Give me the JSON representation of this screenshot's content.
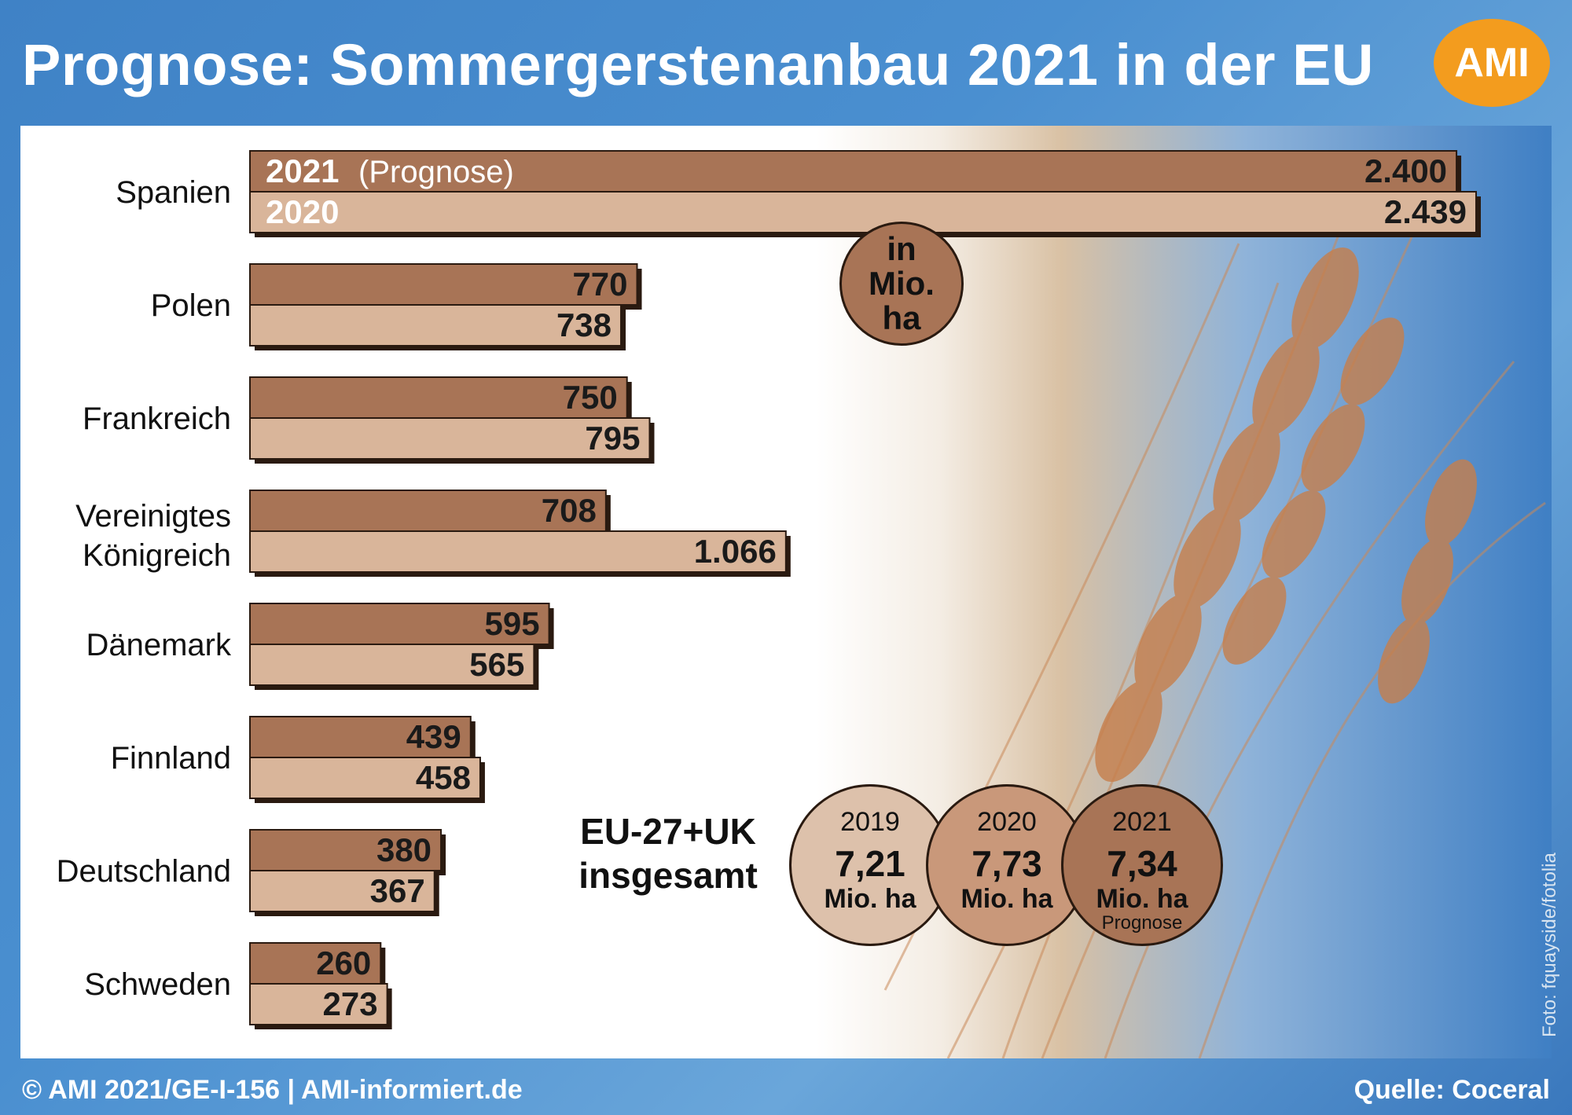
{
  "title": "Prognose: Sommergerstenanbau 2021 in der EU",
  "logo": "AMI",
  "footer": {
    "left": "© AMI 2021/GE-I-156 | AMI-informiert.de",
    "right": "Quelle: Coceral"
  },
  "photo_credit": "Foto: fquayside/fotolia",
  "unit_badge": {
    "line1": "in",
    "line2": "Mio.",
    "line3": "ha"
  },
  "legend": {
    "year_2021": "2021",
    "year_2021_note": "(Prognose)",
    "year_2020": "2020"
  },
  "totals": {
    "label_line1": "EU-27+UK",
    "label_line2": "insgesamt",
    "items": [
      {
        "year": "2019",
        "value": "7,21",
        "unit": "Mio. ha",
        "note": ""
      },
      {
        "year": "2020",
        "value": "7,73",
        "unit": "Mio. ha",
        "note": ""
      },
      {
        "year": "2021",
        "value": "7,34",
        "unit": "Mio. ha",
        "note": "Prognose"
      }
    ]
  },
  "colors": {
    "bar_2021": "#a87456",
    "bar_2020": "#d9b59a",
    "background": "#4a8fd0",
    "logo": "#f39c1e"
  },
  "chart_data": {
    "type": "bar",
    "orientation": "horizontal",
    "categories": [
      "Spanien",
      "Polen",
      "Frankreich",
      "Vereinigtes Königreich",
      "Dänemark",
      "Finnland",
      "Deutschland",
      "Schweden"
    ],
    "category_lines": [
      [
        "Spanien"
      ],
      [
        "Polen"
      ],
      [
        "Frankreich"
      ],
      [
        "Vereinigtes",
        "Königreich"
      ],
      [
        "Dänemark"
      ],
      [
        "Finnland"
      ],
      [
        "Deutschland"
      ],
      [
        "Schweden"
      ]
    ],
    "series": [
      {
        "name": "2021 (Prognose)",
        "values": [
          2400,
          770,
          750,
          708,
          595,
          439,
          380,
          260
        ],
        "labels": [
          "2.400",
          "770",
          "750",
          "708",
          "595",
          "439",
          "380",
          "260"
        ]
      },
      {
        "name": "2020",
        "values": [
          2439,
          738,
          795,
          1066,
          565,
          458,
          367,
          273
        ],
        "labels": [
          "2.439",
          "738",
          "795",
          "1.066",
          "565",
          "458",
          "367",
          "273"
        ]
      }
    ]
  }
}
